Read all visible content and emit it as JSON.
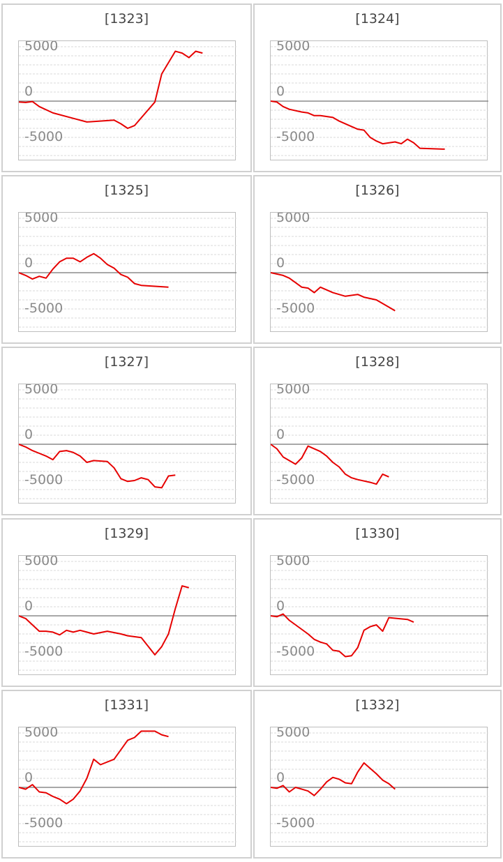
{
  "colors": {
    "series": "#e60000",
    "zero": "#8c8c8c",
    "grid": "#d9d9d9",
    "frame": "#bdbdbd"
  },
  "chart_data": [
    {
      "type": "line",
      "title": "[1323]",
      "yticks": [
        "5000",
        "0",
        "-5000"
      ],
      "yticks_values": [
        5000,
        0,
        -5000
      ],
      "ylim": [
        -6000,
        6000
      ],
      "xlim": [
        0,
        32
      ],
      "grid": true,
      "series": [
        {
          "values": [
            [
              0,
              -100
            ],
            [
              1,
              -150
            ],
            [
              2,
              -50
            ],
            [
              3,
              -600
            ],
            [
              5,
              -1300
            ],
            [
              8,
              -1900
            ],
            [
              10,
              -2300
            ],
            [
              14,
              -2100
            ],
            [
              15,
              -2500
            ],
            [
              16,
              -3000
            ],
            [
              17,
              -2700
            ],
            [
              20,
              -100
            ],
            [
              21,
              3000
            ],
            [
              23,
              5500
            ],
            [
              24,
              5300
            ],
            [
              25,
              4800
            ],
            [
              26,
              5500
            ],
            [
              27,
              5300
            ]
          ]
        }
      ]
    },
    {
      "type": "line",
      "title": "[1324]",
      "yticks": [
        "5000",
        "0",
        "-5000"
      ],
      "yticks_values": [
        5000,
        0,
        -5000
      ],
      "ylim": [
        -6000,
        6000
      ],
      "xlim": [
        0,
        35
      ],
      "grid": true,
      "series": [
        {
          "values": [
            [
              0,
              0
            ],
            [
              1,
              -100
            ],
            [
              2,
              -600
            ],
            [
              3,
              -900
            ],
            [
              5,
              -1200
            ],
            [
              6,
              -1300
            ],
            [
              7,
              -1600
            ],
            [
              8,
              -1600
            ],
            [
              10,
              -1800
            ],
            [
              11,
              -2200
            ],
            [
              13,
              -2800
            ],
            [
              14,
              -3100
            ],
            [
              15,
              -3200
            ],
            [
              16,
              -4000
            ],
            [
              17,
              -4400
            ],
            [
              18,
              -4700
            ],
            [
              20,
              -4500
            ],
            [
              21,
              -4700
            ],
            [
              22,
              -4200
            ],
            [
              23,
              -4600
            ],
            [
              24,
              -5200
            ],
            [
              28,
              -5300
            ]
          ]
        }
      ]
    },
    {
      "type": "line",
      "title": "[1325]",
      "yticks": [
        "5000",
        "0",
        "-5000"
      ],
      "yticks_values": [
        5000,
        0,
        -5000
      ],
      "ylim": [
        -6000,
        6000
      ],
      "xlim": [
        0,
        32
      ],
      "grid": true,
      "series": [
        {
          "values": [
            [
              0,
              0
            ],
            [
              1,
              -300
            ],
            [
              2,
              -700
            ],
            [
              3,
              -400
            ],
            [
              4,
              -600
            ],
            [
              5,
              400
            ],
            [
              6,
              1200
            ],
            [
              7,
              1600
            ],
            [
              8,
              1600
            ],
            [
              9,
              1200
            ],
            [
              10,
              1700
            ],
            [
              11,
              2100
            ],
            [
              12,
              1600
            ],
            [
              13,
              900
            ],
            [
              14,
              500
            ],
            [
              15,
              -200
            ],
            [
              16,
              -500
            ],
            [
              17,
              -1200
            ],
            [
              18,
              -1400
            ],
            [
              22,
              -1600
            ]
          ]
        }
      ]
    },
    {
      "type": "line",
      "title": "[1326]",
      "yticks": [
        "5000",
        "0",
        "-5000"
      ],
      "yticks_values": [
        5000,
        0,
        -5000
      ],
      "ylim": [
        -6000,
        6000
      ],
      "xlim": [
        0,
        35
      ],
      "grid": true,
      "series": [
        {
          "values": [
            [
              0,
              0
            ],
            [
              2,
              -300
            ],
            [
              3,
              -600
            ],
            [
              4,
              -1100
            ],
            [
              5,
              -1600
            ],
            [
              6,
              -1700
            ],
            [
              7,
              -2200
            ],
            [
              8,
              -1600
            ],
            [
              10,
              -2200
            ],
            [
              12,
              -2600
            ],
            [
              14,
              -2400
            ],
            [
              15,
              -2700
            ],
            [
              17,
              -3000
            ],
            [
              19,
              -3800
            ],
            [
              20,
              -4200
            ]
          ]
        }
      ]
    },
    {
      "type": "line",
      "title": "[1327]",
      "yticks": [
        "5000",
        "0",
        "-5000"
      ],
      "yticks_values": [
        5000,
        0,
        -5000
      ],
      "ylim": [
        -6000,
        6000
      ],
      "xlim": [
        0,
        32
      ],
      "grid": true,
      "series": [
        {
          "values": [
            [
              0,
              0
            ],
            [
              1,
              -300
            ],
            [
              2,
              -700
            ],
            [
              3,
              -1000
            ],
            [
              4,
              -1300
            ],
            [
              5,
              -1700
            ],
            [
              6,
              -800
            ],
            [
              7,
              -700
            ],
            [
              8,
              -900
            ],
            [
              9,
              -1300
            ],
            [
              10,
              -2000
            ],
            [
              11,
              -1800
            ],
            [
              13,
              -1900
            ],
            [
              14,
              -2600
            ],
            [
              15,
              -3800
            ],
            [
              16,
              -4100
            ],
            [
              17,
              -4000
            ],
            [
              18,
              -3700
            ],
            [
              19,
              -3900
            ],
            [
              20,
              -4700
            ],
            [
              21,
              -4800
            ],
            [
              22,
              -3500
            ],
            [
              23,
              -3400
            ]
          ]
        }
      ]
    },
    {
      "type": "line",
      "title": "[1328]",
      "yticks": [
        "5000",
        "0",
        "-5000"
      ],
      "yticks_values": [
        5000,
        0,
        -5000
      ],
      "ylim": [
        -6000,
        6000
      ],
      "xlim": [
        0,
        35
      ],
      "grid": true,
      "series": [
        {
          "values": [
            [
              0,
              0
            ],
            [
              1,
              -500
            ],
            [
              2,
              -1400
            ],
            [
              4,
              -2200
            ],
            [
              5,
              -1500
            ],
            [
              6,
              -200
            ],
            [
              8,
              -800
            ],
            [
              9,
              -1300
            ],
            [
              10,
              -2000
            ],
            [
              11,
              -2500
            ],
            [
              12,
              -3300
            ],
            [
              13,
              -3700
            ],
            [
              14,
              -3900
            ],
            [
              16,
              -4200
            ],
            [
              17,
              -4400
            ],
            [
              18,
              -3300
            ],
            [
              19,
              -3600
            ]
          ]
        }
      ]
    },
    {
      "type": "line",
      "title": "[1329]",
      "yticks": [
        "5000",
        "0",
        "-5000"
      ],
      "yticks_values": [
        5000,
        0,
        -5000
      ],
      "ylim": [
        -6000,
        6000
      ],
      "xlim": [
        0,
        32
      ],
      "grid": true,
      "series": [
        {
          "values": [
            [
              0,
              0
            ],
            [
              1,
              -300
            ],
            [
              2,
              -1000
            ],
            [
              3,
              -1700
            ],
            [
              4,
              -1700
            ],
            [
              5,
              -1800
            ],
            [
              6,
              -2100
            ],
            [
              7,
              -1600
            ],
            [
              8,
              -1800
            ],
            [
              9,
              -1600
            ],
            [
              10,
              -1800
            ],
            [
              11,
              -2000
            ],
            [
              13,
              -1700
            ],
            [
              15,
              -2000
            ],
            [
              16,
              -2200
            ],
            [
              18,
              -2400
            ],
            [
              20,
              -4300
            ],
            [
              21,
              -3400
            ],
            [
              22,
              -2000
            ],
            [
              23,
              800
            ],
            [
              24,
              3300
            ],
            [
              25,
              3100
            ]
          ]
        }
      ]
    },
    {
      "type": "line",
      "title": "[1330]",
      "yticks": [
        "5000",
        "0",
        "-5000"
      ],
      "yticks_values": [
        5000,
        0,
        -5000
      ],
      "ylim": [
        -6000,
        6000
      ],
      "xlim": [
        0,
        35
      ],
      "grid": true,
      "series": [
        {
          "values": [
            [
              0,
              0
            ],
            [
              1,
              -100
            ],
            [
              2,
              200
            ],
            [
              3,
              -500
            ],
            [
              5,
              -1500
            ],
            [
              6,
              -2000
            ],
            [
              7,
              -2600
            ],
            [
              8,
              -2900
            ],
            [
              9,
              -3100
            ],
            [
              10,
              -3800
            ],
            [
              11,
              -3900
            ],
            [
              12,
              -4500
            ],
            [
              13,
              -4400
            ],
            [
              14,
              -3500
            ],
            [
              15,
              -1600
            ],
            [
              16,
              -1200
            ],
            [
              17,
              -1000
            ],
            [
              18,
              -1700
            ],
            [
              19,
              -200
            ],
            [
              22,
              -400
            ],
            [
              23,
              -700
            ]
          ]
        }
      ]
    },
    {
      "type": "line",
      "title": "[1331]",
      "yticks": [
        "5000",
        "0",
        "-5000"
      ],
      "yticks_values": [
        5000,
        0,
        -5000
      ],
      "ylim": [
        -6000,
        6000
      ],
      "xlim": [
        0,
        32
      ],
      "grid": true,
      "series": [
        {
          "values": [
            [
              0,
              0
            ],
            [
              1,
              -200
            ],
            [
              2,
              300
            ],
            [
              3,
              -500
            ],
            [
              4,
              -600
            ],
            [
              5,
              -1000
            ],
            [
              6,
              -1300
            ],
            [
              7,
              -1800
            ],
            [
              8,
              -1300
            ],
            [
              9,
              -400
            ],
            [
              10,
              1000
            ],
            [
              11,
              3100
            ],
            [
              12,
              2500
            ],
            [
              14,
              3100
            ],
            [
              16,
              5200
            ],
            [
              17,
              5500
            ],
            [
              18,
              6200
            ],
            [
              20,
              6200
            ],
            [
              21,
              5800
            ],
            [
              22,
              5600
            ]
          ]
        }
      ]
    },
    {
      "type": "line",
      "title": "[1332]",
      "yticks": [
        "5000",
        "0",
        "-5000"
      ],
      "yticks_values": [
        5000,
        0,
        -5000
      ],
      "ylim": [
        -6000,
        6000
      ],
      "xlim": [
        0,
        35
      ],
      "grid": true,
      "series": [
        {
          "values": [
            [
              0,
              0
            ],
            [
              1,
              -100
            ],
            [
              2,
              200
            ],
            [
              3,
              -500
            ],
            [
              4,
              0
            ],
            [
              5,
              -200
            ],
            [
              6,
              -400
            ],
            [
              7,
              -900
            ],
            [
              8,
              -200
            ],
            [
              9,
              600
            ],
            [
              10,
              1100
            ],
            [
              11,
              900
            ],
            [
              12,
              500
            ],
            [
              13,
              400
            ],
            [
              14,
              1700
            ],
            [
              15,
              2700
            ],
            [
              16,
              2100
            ],
            [
              17,
              1500
            ],
            [
              18,
              800
            ],
            [
              19,
              400
            ],
            [
              20,
              -200
            ]
          ]
        }
      ]
    }
  ]
}
